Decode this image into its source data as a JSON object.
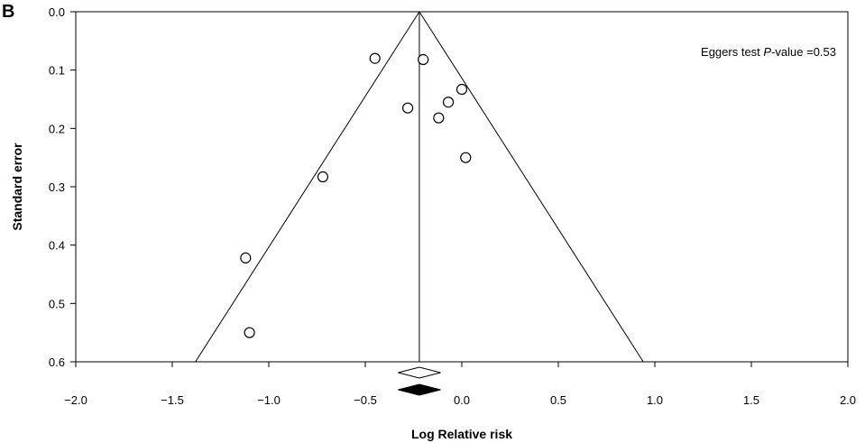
{
  "panel_label": "B",
  "chart_data": {
    "type": "scatter",
    "title": "",
    "xlabel": "Log Relative risk",
    "ylabel": "Standard error",
    "xlim": [
      -2.0,
      2.0
    ],
    "ylim": [
      0.0,
      0.6
    ],
    "y_reversed": true,
    "x_ticks": [
      "−2.0",
      "−1.5",
      "−1.0",
      "−0.5",
      "0.0",
      "0.5",
      "1.0",
      "1.5",
      "2.0"
    ],
    "x_tick_values": [
      -2.0,
      -1.5,
      -1.0,
      -0.5,
      0.0,
      0.5,
      1.0,
      1.5,
      2.0
    ],
    "y_ticks": [
      "0.0",
      "0.1",
      "0.2",
      "0.3",
      "0.4",
      "0.5",
      "0.6"
    ],
    "y_tick_values": [
      0.0,
      0.1,
      0.2,
      0.3,
      0.4,
      0.5,
      0.6
    ],
    "grid": false,
    "points": [
      {
        "x": -0.45,
        "y": 0.08
      },
      {
        "x": -0.2,
        "y": 0.082
      },
      {
        "x": 0.0,
        "y": 0.133
      },
      {
        "x": -0.07,
        "y": 0.155
      },
      {
        "x": -0.28,
        "y": 0.165
      },
      {
        "x": -0.12,
        "y": 0.182
      },
      {
        "x": 0.02,
        "y": 0.25
      },
      {
        "x": -0.72,
        "y": 0.283
      },
      {
        "x": -1.12,
        "y": 0.422
      },
      {
        "x": -1.1,
        "y": 0.55
      }
    ],
    "pooled_estimate": -0.22,
    "funnel": {
      "apex": [
        -0.22,
        0.0
      ],
      "left_base": [
        -1.38,
        0.6
      ],
      "right_base": [
        0.94,
        0.6
      ]
    },
    "summary_diamonds": [
      {
        "center": -0.22,
        "half_width": 0.11,
        "style": "open"
      },
      {
        "center": -0.22,
        "half_width": 0.11,
        "style": "filled"
      }
    ],
    "annotation": {
      "prefix": "Eggers test ",
      "italic": "P",
      "suffix": "-value =0.53"
    }
  }
}
